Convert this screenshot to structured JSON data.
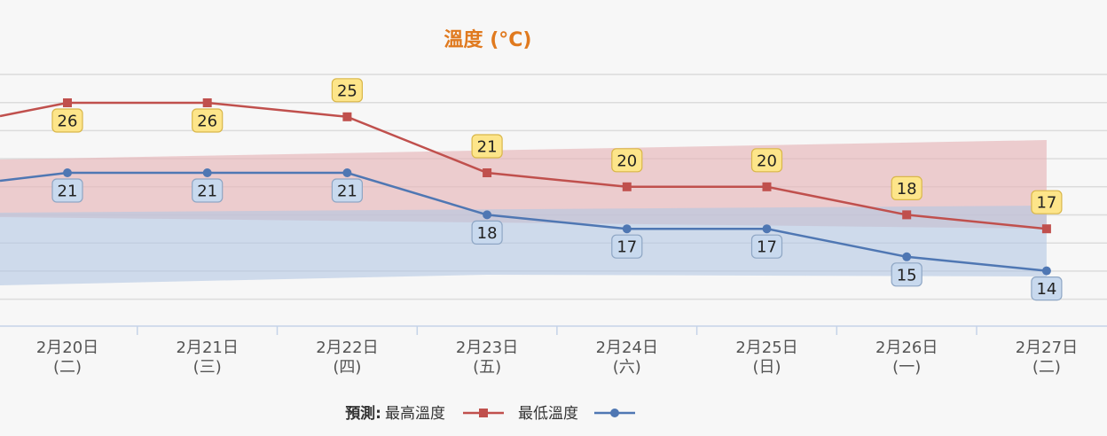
{
  "chart_data": {
    "type": "line",
    "title": "溫度 (°C)",
    "categories": [
      [
        "2月20日",
        "(二)"
      ],
      [
        "2月21日",
        "(三)"
      ],
      [
        "2月22日",
        "(四)"
      ],
      [
        "2月23日",
        "(五)"
      ],
      [
        "2月24日",
        "(六)"
      ],
      [
        "2月25日",
        "(日)"
      ],
      [
        "2月26日",
        "(一)"
      ],
      [
        "2月27日",
        "(二)"
      ]
    ],
    "series": [
      {
        "name": "最高溫度",
        "values": [
          26,
          26,
          25,
          21,
          20,
          20,
          18,
          17
        ],
        "color": "#c0504d",
        "marker": "square",
        "label_bg": "#fde58a",
        "label_border": "#d9b74a"
      },
      {
        "name": "最低溫度",
        "values": [
          21,
          21,
          21,
          18,
          17,
          17,
          15,
          14
        ],
        "color": "#4f77b3",
        "marker": "circle",
        "label_bg": "#c8d9ee",
        "label_border": "#8ea6c4"
      }
    ],
    "range_bands": [
      {
        "series": "最高溫度",
        "color": "#e6b5b8"
      },
      {
        "series": "最低溫度",
        "color": "#b3c7e2"
      }
    ],
    "grid": true,
    "legend_position": "bottom-center",
    "legend_prefix": "預測:",
    "title_color": "#e07a1f"
  }
}
